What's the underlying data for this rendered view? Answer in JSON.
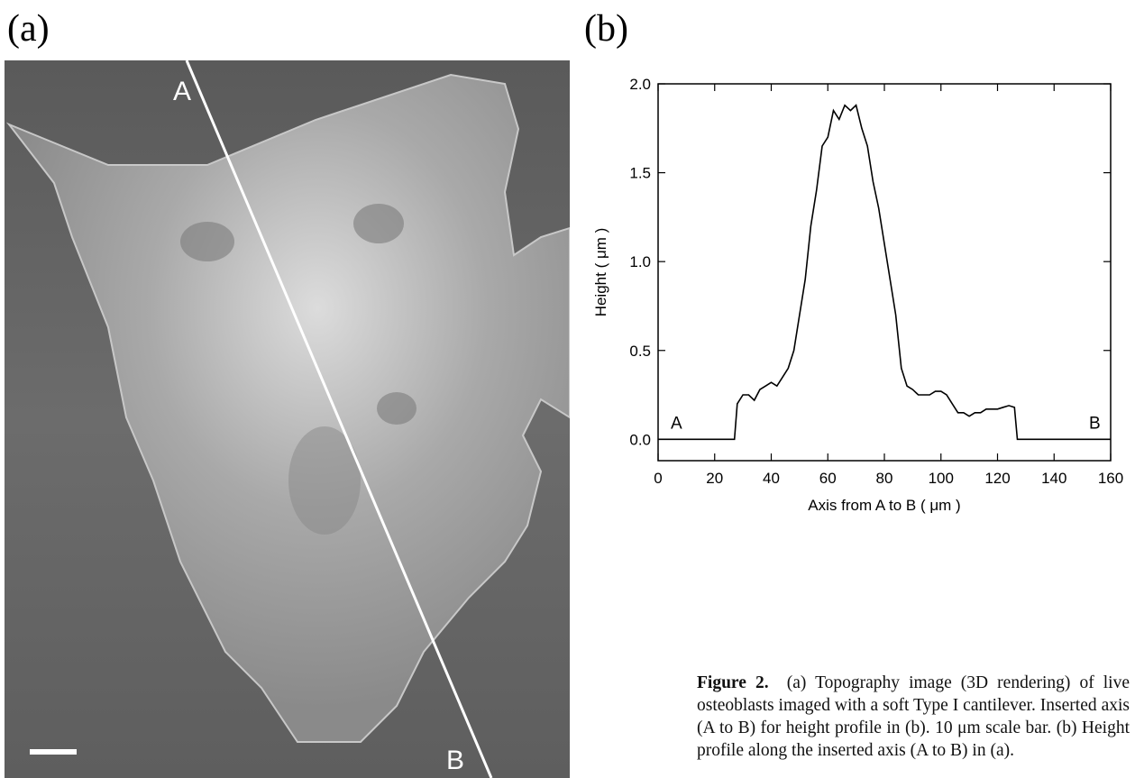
{
  "panel_a": {
    "label": "(a)",
    "marker_start": "A",
    "marker_end": "B"
  },
  "panel_b": {
    "label": "(b)"
  },
  "chart_data": {
    "type": "line",
    "x_label": "Axis from A to B ( μm )",
    "y_label": "Height ( μm )",
    "annotations": [
      "A",
      "B"
    ],
    "color": "#000000",
    "x": [
      0,
      5,
      10,
      15,
      20,
      25,
      27,
      28,
      30,
      32,
      34,
      36,
      38,
      40,
      42,
      44,
      46,
      48,
      50,
      52,
      54,
      56,
      58,
      60,
      62,
      64,
      66,
      68,
      70,
      72,
      74,
      76,
      78,
      80,
      82,
      84,
      86,
      88,
      90,
      92,
      94,
      96,
      98,
      100,
      102,
      104,
      106,
      108,
      110,
      112,
      114,
      116,
      118,
      120,
      122,
      124,
      126,
      127,
      130,
      135,
      140,
      145,
      150,
      155,
      160
    ],
    "values": [
      0,
      0,
      0,
      0,
      0,
      0,
      0,
      0.2,
      0.25,
      0.25,
      0.22,
      0.28,
      0.3,
      0.32,
      0.3,
      0.35,
      0.4,
      0.5,
      0.7,
      0.9,
      1.2,
      1.4,
      1.65,
      1.7,
      1.85,
      1.8,
      1.88,
      1.85,
      1.88,
      1.75,
      1.65,
      1.45,
      1.3,
      1.1,
      0.9,
      0.7,
      0.4,
      0.3,
      0.28,
      0.25,
      0.25,
      0.25,
      0.27,
      0.27,
      0.25,
      0.2,
      0.15,
      0.15,
      0.13,
      0.15,
      0.15,
      0.17,
      0.17,
      0.17,
      0.18,
      0.19,
      0.18,
      0,
      0,
      0,
      0,
      0,
      0,
      0,
      0
    ],
    "xlim": [
      0,
      160
    ],
    "xticks": [
      0,
      20,
      40,
      60,
      80,
      100,
      120,
      140,
      160
    ],
    "ylim": [
      -0.12,
      2.0
    ],
    "yticks": [
      {
        "value": 0,
        "label": "0.0"
      },
      0.5,
      {
        "value": 1,
        "label": "1.0"
      },
      1.5,
      {
        "value": 2,
        "label": "2.0"
      }
    ]
  },
  "caption": {
    "label": "Figure 2.",
    "text": "(a) Topography image (3D rendering) of live osteoblasts imaged with a soft Type I cantilever. Inserted axis (A to B) for height profile in (b). 10 μm scale bar. (b) Height profile along the inserted axis (A to B) in (a)."
  }
}
